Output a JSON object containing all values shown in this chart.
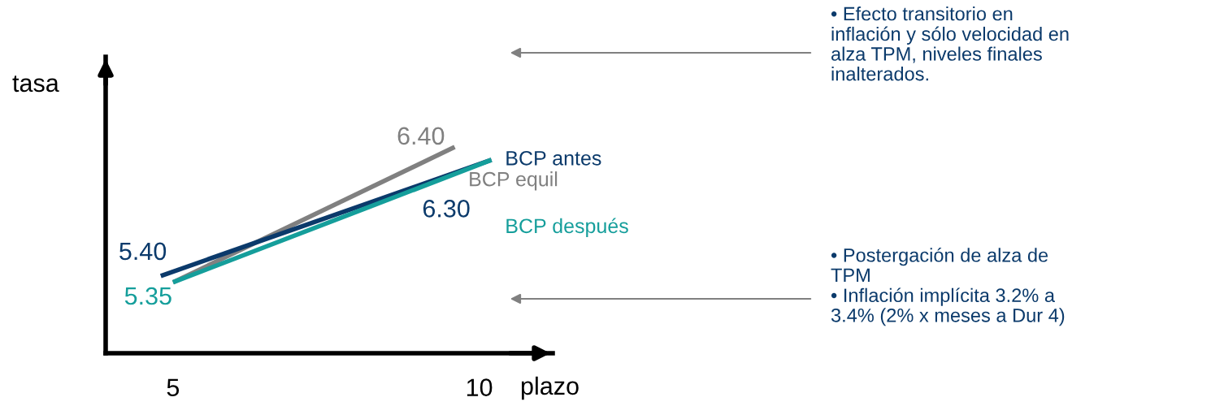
{
  "chart_data": {
    "type": "line",
    "xlabel": "plazo",
    "ylabel": "tasa",
    "xlim": [
      3.9,
      11.2
    ],
    "ylim": [
      4.8,
      7.1
    ],
    "xticks": [
      5,
      10
    ],
    "tick_labels": "x",
    "grid": false,
    "legend": false,
    "marker": "none",
    "line_style": "solid",
    "series": [
      {
        "name": "BCP equil",
        "color": "#808080",
        "x": [
          5,
          9.6
        ],
        "values": [
          5.35,
          6.4
        ],
        "value_labels": [
          null,
          "6.40"
        ]
      },
      {
        "name": "BCP antes",
        "color": "#0b3a6b",
        "x": [
          4.8,
          10.2
        ],
        "values": [
          5.4,
          6.3
        ],
        "value_labels": [
          "5.40",
          "6.30"
        ]
      },
      {
        "name": "BCP después",
        "color": "#159e9b",
        "x": [
          5,
          10.2
        ],
        "values": [
          5.35,
          6.3
        ],
        "value_labels": [
          "5.35",
          null
        ]
      }
    ],
    "annotations": [
      "• Efecto transitorio en\ninflación y sólo velocidad en\nalza TPM, niveles finales\ninalterados.",
      "• Postergación de alza de\nTPM\n• Inflación implícita 3.2% a\n3.4% (2% x meses a Dur 4)"
    ]
  }
}
